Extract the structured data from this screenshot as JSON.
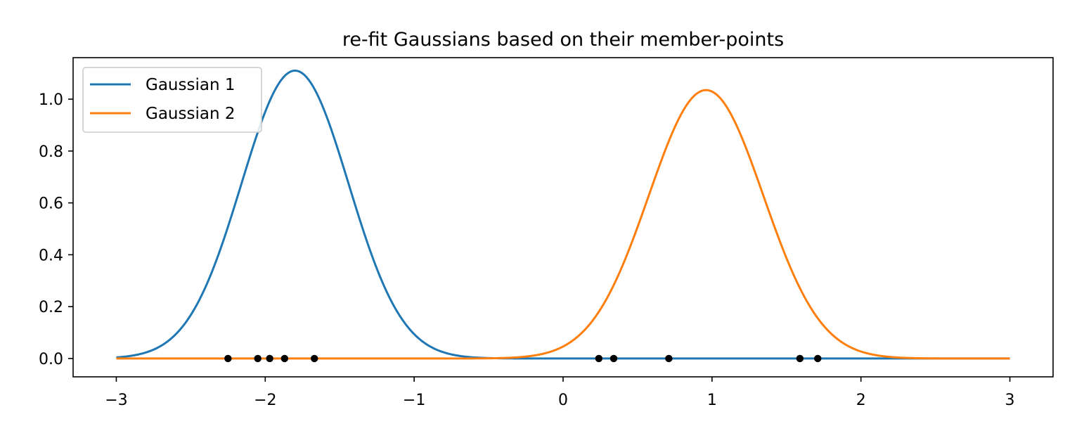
{
  "chart_data": {
    "type": "line",
    "title": "re-fit Gaussians based on their member-points",
    "xlabel": "",
    "ylabel": "",
    "xlim": [
      -3.29,
      3.29
    ],
    "ylim": [
      -0.0707,
      1.16
    ],
    "xticks": [
      {
        "value": -3,
        "label": "−3"
      },
      {
        "value": -2,
        "label": "−2"
      },
      {
        "value": -1,
        "label": "−1"
      },
      {
        "value": 0,
        "label": "0"
      },
      {
        "value": 1,
        "label": "1"
      },
      {
        "value": 2,
        "label": "2"
      },
      {
        "value": 3,
        "label": "3"
      }
    ],
    "yticks": [
      {
        "value": 0.0,
        "label": "0.0"
      },
      {
        "value": 0.2,
        "label": "0.2"
      },
      {
        "value": 0.4,
        "label": "0.4"
      },
      {
        "value": 0.6,
        "label": "0.6"
      },
      {
        "value": 0.8,
        "label": "0.8"
      },
      {
        "value": 1.0,
        "label": "1.0"
      }
    ],
    "x_range": [
      -3,
      3
    ],
    "legend_position": "top-left",
    "series": [
      {
        "name": "Gaussian 1",
        "color": "#1f77b4",
        "kind": "gaussian",
        "mean": -1.8,
        "std": 0.36,
        "peak": 1.11
      },
      {
        "name": "Gaussian 2",
        "color": "#ff7f0e",
        "kind": "gaussian",
        "mean": 0.96,
        "std": 0.385,
        "peak": 1.035
      }
    ],
    "points": {
      "color": "#000000",
      "x": [
        -2.25,
        -2.05,
        -1.97,
        -1.87,
        -1.67,
        0.24,
        0.34,
        0.71,
        1.59,
        1.71
      ],
      "y": [
        0,
        0,
        0,
        0,
        0,
        0,
        0,
        0,
        0,
        0
      ]
    }
  }
}
